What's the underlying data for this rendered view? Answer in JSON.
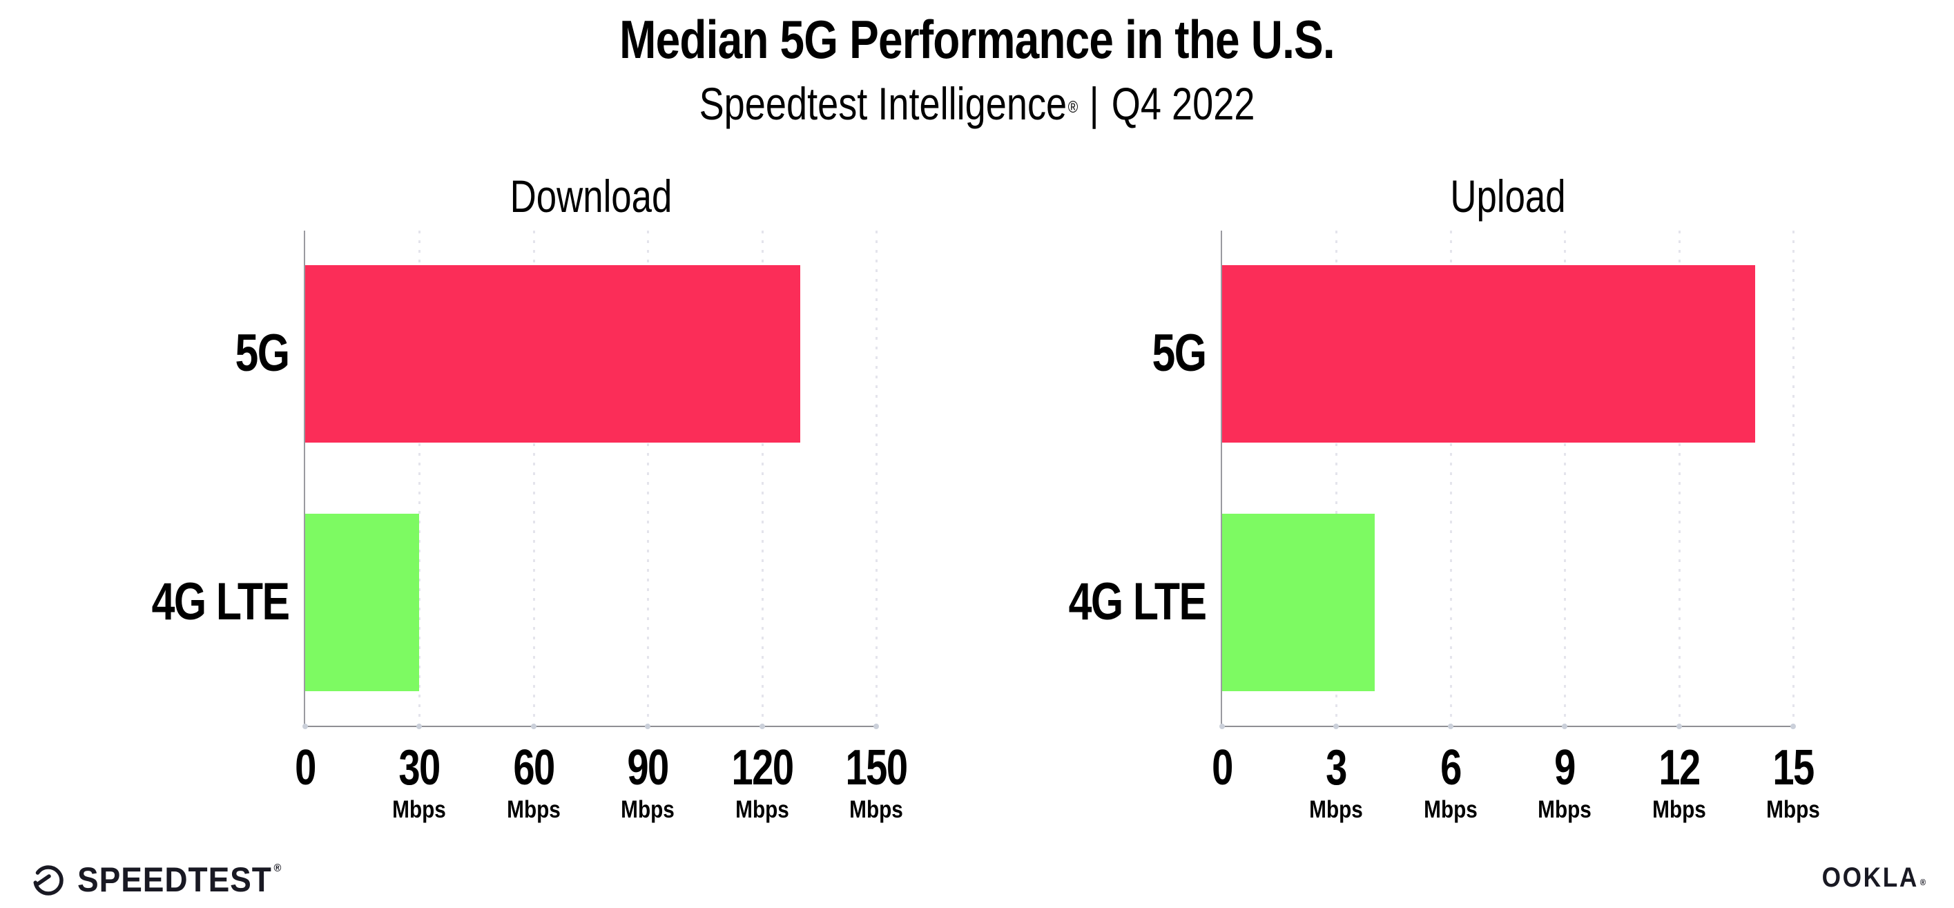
{
  "header": {
    "title": "Median 5G Performance in the U.S.",
    "subtitle_brand": "Speedtest Intelligence",
    "subtitle_reg": "®",
    "subtitle_sep": "|",
    "subtitle_period": "Q4 2022"
  },
  "chart_data": [
    {
      "type": "bar",
      "orientation": "horizontal",
      "title": "Download",
      "categories": [
        "5G",
        "4G LTE"
      ],
      "values": [
        130,
        30
      ],
      "unit": "Mbps",
      "xlim": [
        0,
        150
      ],
      "xticks": [
        0,
        30,
        60,
        90,
        120,
        150
      ],
      "colors": [
        "#FB2D58",
        "#7DFA62"
      ],
      "grid": "dotted-vertical",
      "legend": "none"
    },
    {
      "type": "bar",
      "orientation": "horizontal",
      "title": "Upload",
      "categories": [
        "5G",
        "4G LTE"
      ],
      "values": [
        14,
        4
      ],
      "unit": "Mbps",
      "xlim": [
        0,
        15
      ],
      "xticks": [
        0,
        3,
        6,
        9,
        12,
        15
      ],
      "colors": [
        "#FB2D58",
        "#7DFA62"
      ],
      "grid": "dotted-vertical",
      "legend": "none"
    }
  ],
  "footer": {
    "speedtest_label": "SPEEDTEST",
    "speedtest_reg": "®",
    "ookla_label": "OOKLA",
    "ookla_reg": "®"
  },
  "colors": {
    "bar_5g": "#FB2D58",
    "bar_4g": "#7DFA62",
    "x_axis": "#8F8F94",
    "y_axis": "#9A9AA0",
    "gridline": "#E4E4EC",
    "tick_dot": "#CBD0DA",
    "text": "#000000",
    "logo": "#191923"
  }
}
